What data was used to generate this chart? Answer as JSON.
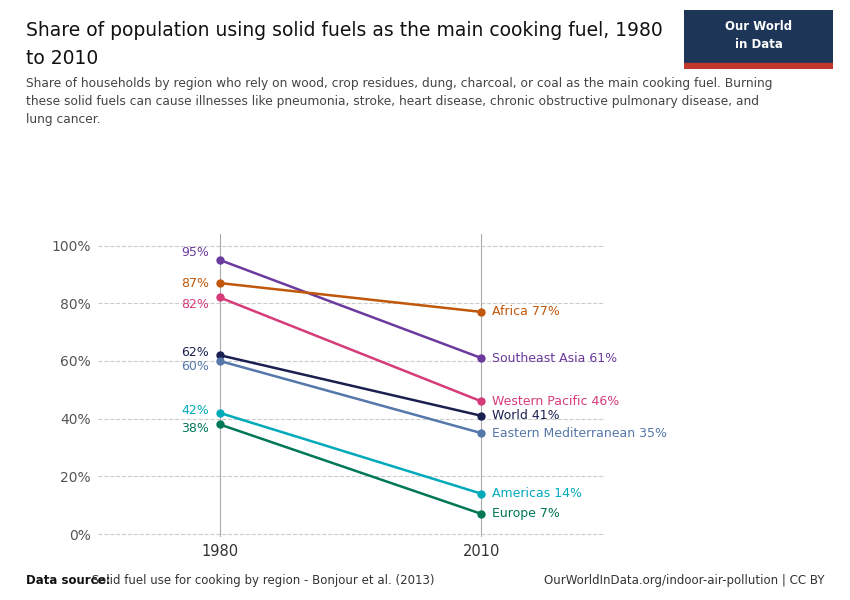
{
  "title_line1": "Share of population using solid fuels as the main cooking fuel, 1980",
  "title_line2": "to 2010",
  "subtitle": "Share of households by region who rely on wood, crop residues, dung, charcoal, or coal as the main cooking fuel. Burning\nthese solid fuels can cause illnesses like pneumonia, stroke, heart disease, chronic obstructive pulmonary disease, and\nlung cancer.",
  "years": [
    1980,
    2010
  ],
  "series": [
    {
      "name": "Southeast Asia",
      "values": [
        95,
        61
      ],
      "color": "#6b3a9e",
      "label_1980": "95%",
      "label_2010": "Southeast Asia 61%"
    },
    {
      "name": "Africa",
      "values": [
        87,
        77
      ],
      "color": "#c0570a",
      "label_1980": "87%",
      "label_2010": "Africa 77%"
    },
    {
      "name": "Western Pacific",
      "values": [
        82,
        46
      ],
      "color": "#d63b7a",
      "label_1980": "82%",
      "label_2010": "Western Pacific 46%"
    },
    {
      "name": "World",
      "values": [
        62,
        41
      ],
      "color": "#1a2050",
      "label_1980": "62%",
      "label_2010": "World 41%"
    },
    {
      "name": "Eastern Mediterranean",
      "values": [
        60,
        35
      ],
      "color": "#5577aa",
      "label_1980": "60%",
      "label_2010": "Eastern Mediterranean 35%"
    },
    {
      "name": "Americas",
      "values": [
        42,
        14
      ],
      "color": "#00aabb",
      "label_1980": "42%",
      "label_2010": "Americas 14%"
    },
    {
      "name": "Europe",
      "values": [
        38,
        7
      ],
      "color": "#007755",
      "label_1980": "38%",
      "label_2010": "Europe 7%"
    }
  ],
  "yticks": [
    0,
    20,
    40,
    60,
    80,
    100
  ],
  "datasource_bold": "Data source:",
  "datasource_rest": " Solid fuel use for cooking by region - Bonjour et al. (2013)",
  "owid_url": "OurWorldInData.org/indoor-air-pollution | CC BY",
  "bg_color": "#ffffff",
  "grid_color": "#cccccc",
  "owid_box_color": "#1d3557",
  "owid_box_red": "#c0392b"
}
